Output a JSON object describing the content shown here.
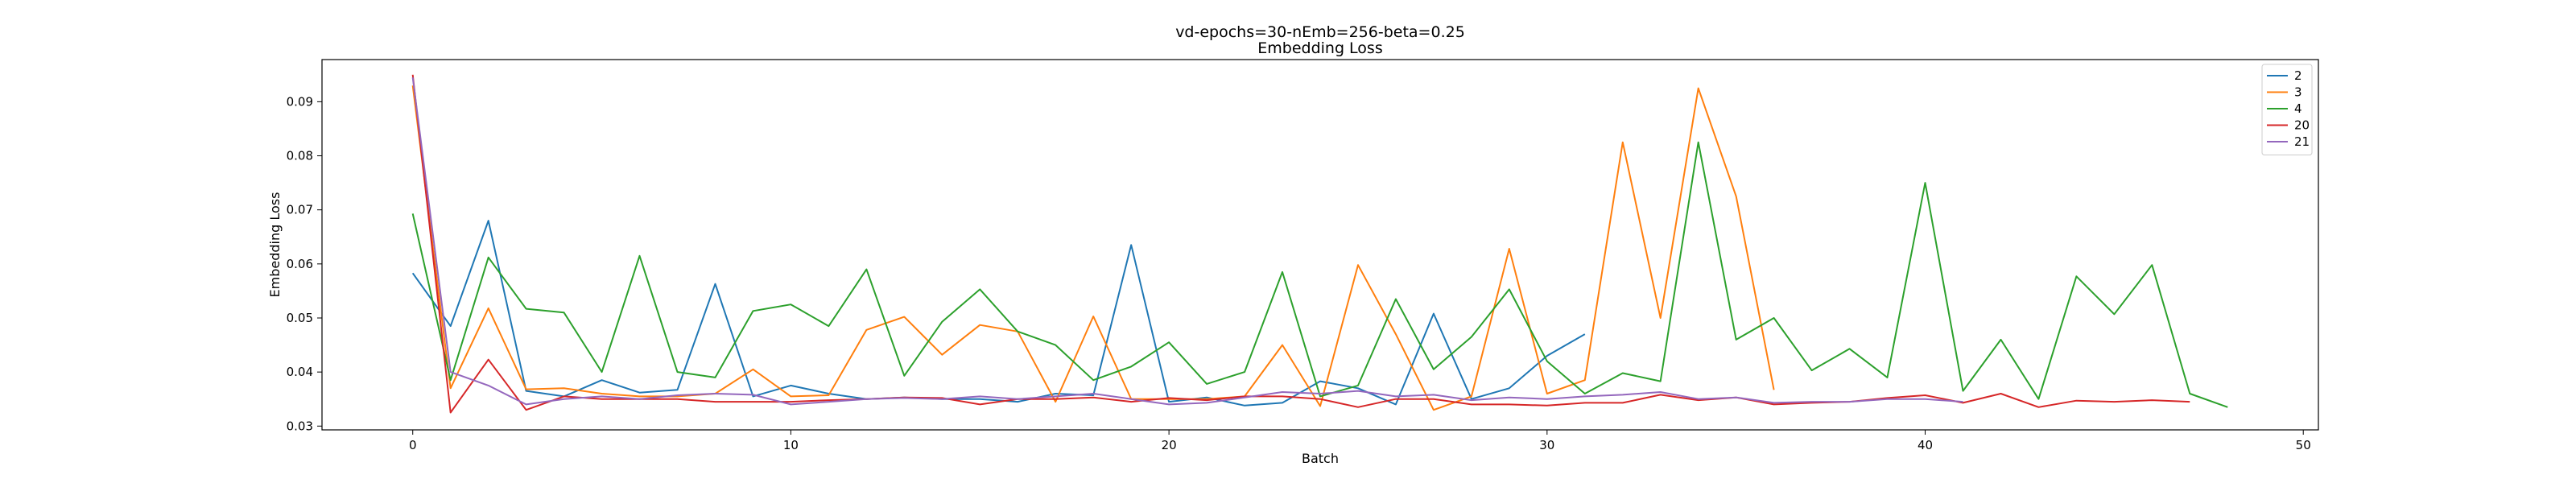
{
  "chart_data": {
    "type": "line",
    "title": "vd-epochs=30-nEmb=256-beta=0.25",
    "subtitle": "Embedding Loss",
    "xlabel": "Batch",
    "ylabel": "Embedding Loss",
    "xlim": [
      -2.4,
      50.4
    ],
    "ylim": [
      0.0293,
      0.0978
    ],
    "xticks": [
      0,
      10,
      20,
      30,
      40,
      50
    ],
    "yticks": [
      0.03,
      0.04,
      0.05,
      0.06,
      0.07,
      0.08,
      0.09
    ],
    "ytick_labels": [
      "0.03",
      "0.04",
      "0.05",
      "0.06",
      "0.07",
      "0.08",
      "0.09"
    ],
    "grid": false,
    "legend_position": "top-right",
    "series": [
      {
        "name": "2",
        "color": "#1f77b4",
        "values": [
          0.0583,
          0.0485,
          0.068,
          0.0365,
          0.0355,
          0.0385,
          0.0362,
          0.0367,
          0.0563,
          0.0355,
          0.0375,
          0.036,
          0.035,
          0.0353,
          0.035,
          0.035,
          0.0345,
          0.036,
          0.0357,
          0.0635,
          0.0345,
          0.0353,
          0.0338,
          0.0343,
          0.0383,
          0.037,
          0.034,
          0.0508,
          0.035,
          0.037,
          0.043,
          0.047
        ]
      },
      {
        "name": "3",
        "color": "#ff7f0e",
        "values": [
          0.093,
          0.037,
          0.0518,
          0.0368,
          0.037,
          0.036,
          0.0355,
          0.0355,
          0.036,
          0.0405,
          0.0355,
          0.0357,
          0.0478,
          0.0502,
          0.0432,
          0.0487,
          0.0475,
          0.0345,
          0.0503,
          0.035,
          0.035,
          0.035,
          0.0355,
          0.045,
          0.0337,
          0.0598,
          0.047,
          0.033,
          0.0355,
          0.0628,
          0.036,
          0.0385,
          0.0825,
          0.05,
          0.0925,
          0.0725,
          0.0367
        ]
      },
      {
        "name": "4",
        "color": "#2ca02c",
        "values": [
          0.0693,
          0.0385,
          0.0612,
          0.0517,
          0.051,
          0.04,
          0.0615,
          0.04,
          0.039,
          0.0513,
          0.0525,
          0.0485,
          0.059,
          0.0393,
          0.0493,
          0.0553,
          0.0475,
          0.045,
          0.0385,
          0.041,
          0.0455,
          0.0378,
          0.04,
          0.0585,
          0.0355,
          0.0375,
          0.0535,
          0.0405,
          0.0465,
          0.0553,
          0.042,
          0.036,
          0.0398,
          0.0383,
          0.0825,
          0.046,
          0.05,
          0.0403,
          0.0443,
          0.039,
          0.075,
          0.0365,
          0.046,
          0.035,
          0.0577,
          0.0507,
          0.0598,
          0.036,
          0.0335
        ]
      },
      {
        "name": "20",
        "color": "#d62728",
        "values": [
          0.095,
          0.0325,
          0.0423,
          0.033,
          0.0355,
          0.035,
          0.035,
          0.035,
          0.0345,
          0.0345,
          0.0345,
          0.0348,
          0.035,
          0.0353,
          0.0352,
          0.034,
          0.035,
          0.035,
          0.0353,
          0.0345,
          0.0352,
          0.0348,
          0.0355,
          0.0355,
          0.035,
          0.0335,
          0.035,
          0.035,
          0.034,
          0.034,
          0.0338,
          0.0343,
          0.0343,
          0.0358,
          0.0348,
          0.0353,
          0.034,
          0.0343,
          0.0345,
          0.0352,
          0.0357,
          0.0343,
          0.036,
          0.0335,
          0.0347,
          0.0345,
          0.0348,
          0.0345
        ]
      },
      {
        "name": "21",
        "color": "#9467bd",
        "values": [
          0.0945,
          0.04,
          0.0375,
          0.034,
          0.035,
          0.0355,
          0.035,
          0.0357,
          0.036,
          0.0358,
          0.034,
          0.0345,
          0.035,
          0.0352,
          0.035,
          0.0355,
          0.035,
          0.0355,
          0.036,
          0.035,
          0.034,
          0.0343,
          0.0353,
          0.0363,
          0.036,
          0.0365,
          0.0355,
          0.0358,
          0.0348,
          0.0353,
          0.035,
          0.0355,
          0.0358,
          0.0363,
          0.035,
          0.0353,
          0.0343,
          0.0345,
          0.0345,
          0.035,
          0.035,
          0.0345
        ]
      }
    ]
  }
}
